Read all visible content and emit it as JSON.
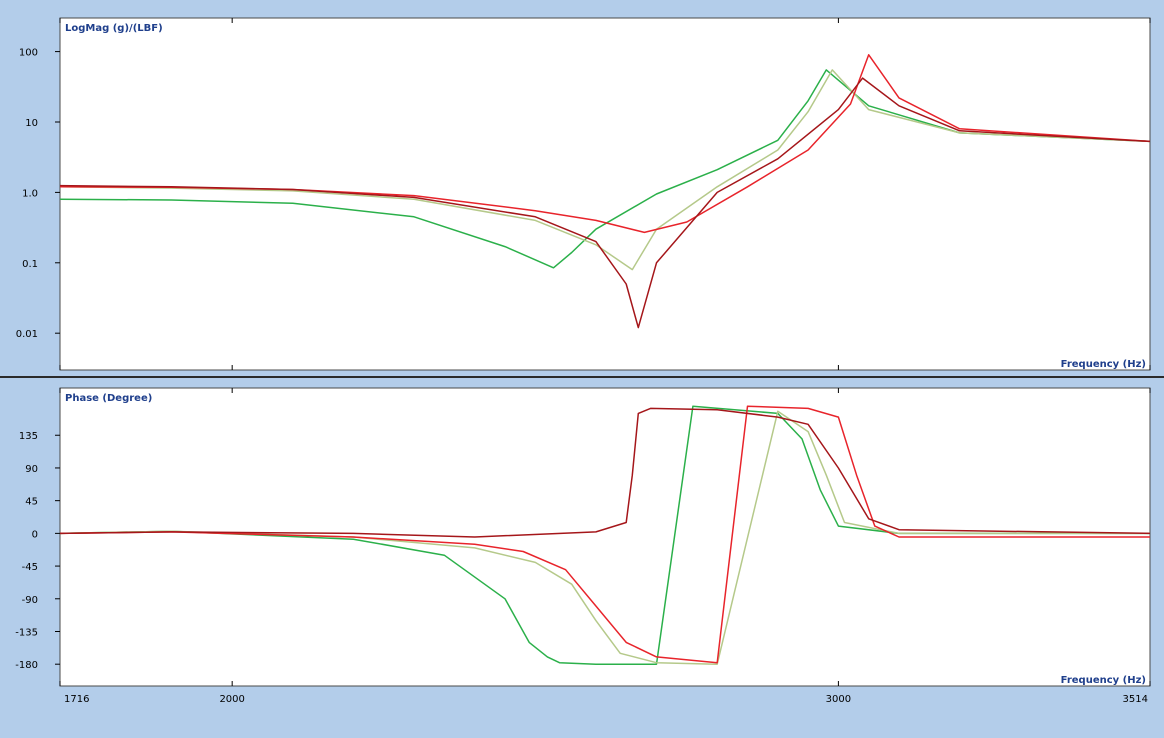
{
  "colors": {
    "background": "#b3cdea",
    "plot_background": "#ffffff",
    "label_text": "#1f3f8c",
    "series": [
      "#2bb04a",
      "#b5c98a",
      "#e8242b",
      "#a5161a"
    ]
  },
  "chart_data": [
    {
      "type": "line",
      "title": "LogMag (g)/(LBF)",
      "xlabel": "Frequency (Hz)",
      "ylabel": "LogMag (g)/(LBF)",
      "yscale": "log",
      "xlim": [
        1716,
        3514
      ],
      "ylim": [
        0.003,
        300
      ],
      "yticks": [
        0.01,
        0.1,
        1,
        10,
        100
      ],
      "ytick_labels": [
        "0.01",
        "0.1",
        "1.0",
        "10",
        "100"
      ],
      "grid": false,
      "series": [
        {
          "color": "#2bb04a",
          "x": [
            1716,
            1900,
            2100,
            2300,
            2450,
            2530,
            2560,
            2600,
            2700,
            2800,
            2900,
            2950,
            2980,
            3050,
            3200,
            3514
          ],
          "y": [
            0.8,
            0.78,
            0.7,
            0.45,
            0.17,
            0.085,
            0.14,
            0.3,
            0.95,
            2.1,
            5.5,
            20,
            55,
            17,
            7,
            5.3
          ]
        },
        {
          "color": "#b5c98a",
          "x": [
            1716,
            1900,
            2100,
            2300,
            2500,
            2600,
            2660,
            2700,
            2800,
            2900,
            2950,
            2990,
            3050,
            3200,
            3514
          ],
          "y": [
            1.2,
            1.15,
            1.05,
            0.8,
            0.4,
            0.18,
            0.08,
            0.3,
            1.2,
            4,
            14,
            55,
            15,
            7,
            5.3
          ]
        },
        {
          "color": "#e8242b",
          "x": [
            1716,
            1900,
            2100,
            2300,
            2500,
            2600,
            2680,
            2750,
            2850,
            2950,
            3020,
            3050,
            3100,
            3200,
            3514
          ],
          "y": [
            1.2,
            1.18,
            1.1,
            0.9,
            0.55,
            0.4,
            0.27,
            0.38,
            1.2,
            4,
            18,
            90,
            22,
            8,
            5.3
          ]
        },
        {
          "color": "#a5161a",
          "x": [
            1716,
            1900,
            2100,
            2300,
            2500,
            2600,
            2650,
            2670,
            2700,
            2800,
            2900,
            3000,
            3040,
            3100,
            3200,
            3514
          ],
          "y": [
            1.25,
            1.2,
            1.1,
            0.85,
            0.45,
            0.2,
            0.05,
            0.012,
            0.1,
            1,
            3,
            15,
            42,
            17,
            7.5,
            5.3
          ]
        }
      ]
    },
    {
      "type": "line",
      "title": "Phase (Degree)",
      "xlabel": "Frequency (Hz)",
      "ylabel": "Phase (Degree)",
      "xlim": [
        1716,
        3514
      ],
      "ylim": [
        -210,
        200
      ],
      "yticks": [
        -180,
        -135,
        -90,
        -45,
        0,
        45,
        90,
        135
      ],
      "ytick_labels": [
        "-180",
        "-135",
        "-90",
        "-45",
        "0",
        "45",
        "90",
        "135"
      ],
      "xticks": [
        1716,
        2000,
        3000,
        3514
      ],
      "xtick_labels": [
        "1716",
        "2000",
        "3000",
        "3514"
      ],
      "grid": false,
      "series": [
        {
          "color": "#2bb04a",
          "x": [
            1716,
            1900,
            2200,
            2350,
            2450,
            2490,
            2520,
            2540,
            2600,
            2700,
            2760,
            2900,
            2940,
            2970,
            3000,
            3100,
            3514
          ],
          "y": [
            0,
            3,
            -8,
            -30,
            -90,
            -150,
            -170,
            -178,
            -180,
            -180,
            175,
            165,
            130,
            60,
            10,
            0,
            0
          ]
        },
        {
          "color": "#b5c98a",
          "x": [
            1716,
            1900,
            2200,
            2400,
            2500,
            2560,
            2600,
            2640,
            2700,
            2800,
            2900,
            2950,
            2980,
            3010,
            3100,
            3514
          ],
          "y": [
            0,
            3,
            -5,
            -20,
            -40,
            -70,
            -120,
            -165,
            -178,
            -180,
            168,
            140,
            80,
            15,
            0,
            0
          ]
        },
        {
          "color": "#e8242b",
          "x": [
            1716,
            1900,
            2200,
            2400,
            2480,
            2550,
            2600,
            2650,
            2700,
            2800,
            2850,
            2950,
            3000,
            3030,
            3060,
            3100,
            3514
          ],
          "y": [
            0,
            2,
            -5,
            -15,
            -25,
            -50,
            -100,
            -150,
            -170,
            -178,
            175,
            172,
            160,
            80,
            10,
            -5,
            -5
          ]
        },
        {
          "color": "#a5161a",
          "x": [
            1716,
            1900,
            2200,
            2400,
            2600,
            2650,
            2660,
            2670,
            2690,
            2800,
            2900,
            2950,
            3000,
            3050,
            3100,
            3514
          ],
          "y": [
            0,
            2,
            0,
            -5,
            2,
            15,
            80,
            165,
            172,
            170,
            160,
            150,
            90,
            20,
            5,
            0
          ]
        }
      ]
    }
  ]
}
